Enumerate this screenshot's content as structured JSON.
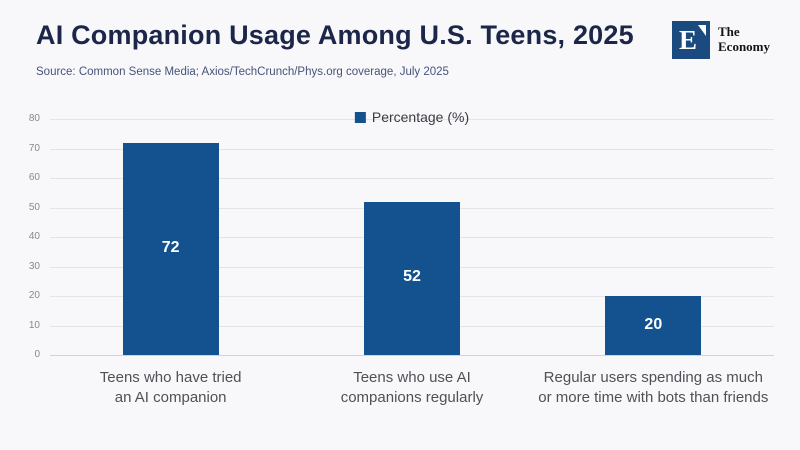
{
  "header": {
    "title": "AI Companion Usage Among U.S. Teens, 2025",
    "source": "Source: Common Sense Media; Axios/TechCrunch/Phys.org coverage, July 2025",
    "logo": {
      "letter": "E",
      "name_line1": "The",
      "name_line2": "Economy"
    }
  },
  "legend": {
    "label": "Percentage (%)"
  },
  "colors": {
    "background": "#f8f8fb",
    "bar": "#14528f",
    "title": "#1c2649",
    "source_text": "#475379",
    "grid": "#e3e3ea",
    "axis_line": "#d2d2d9",
    "tick_text": "#87878f",
    "category_text": "#505057",
    "value_text": "#ffffff",
    "logo_blue": "#1a4a7e"
  },
  "chart_data": {
    "type": "bar",
    "title": "AI Companion Usage Among U.S. Teens, 2025",
    "categories": [
      "Teens who have tried an AI companion",
      "Teens who use AI companions regularly",
      "Regular users spending as much or more time with bots than friends"
    ],
    "values": [
      72,
      52,
      20
    ],
    "series_name": "Percentage (%)",
    "xlabel": "",
    "ylabel": "",
    "ylim": [
      0,
      80
    ],
    "yticks": [
      0,
      10,
      20,
      30,
      40,
      50,
      60,
      70,
      80
    ],
    "grid": true,
    "legend_position": "top-center",
    "value_label_position": "inside-center"
  }
}
